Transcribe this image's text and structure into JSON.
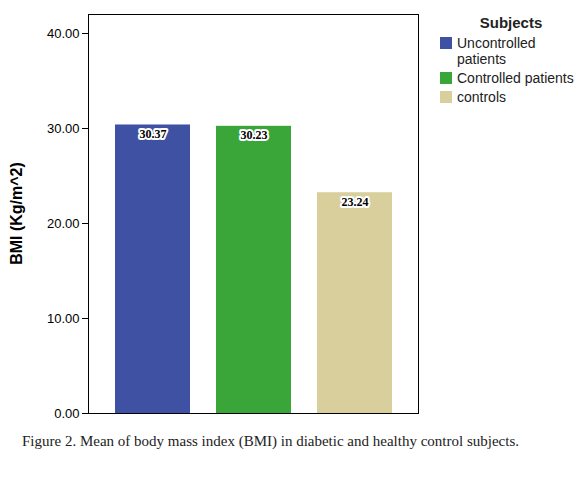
{
  "chart_data": {
    "type": "bar",
    "caption": "Figure 2. Mean of body mass index (BMI) in diabetic and healthy control subjects.",
    "y_label": "BMI (Kg/m^2)",
    "legend_title": "Subjects",
    "legend": "top-right",
    "categories": [
      "Uncontrolled patients",
      "Controlled patients",
      "controls"
    ],
    "values": [
      30.37,
      30.23,
      23.24
    ],
    "colors": [
      "#3f51a3",
      "#3aa63a",
      "#d8cf9c"
    ],
    "ylim": [
      0,
      42
    ],
    "yticks": [
      {
        "value": 0,
        "label": "0.00"
      },
      {
        "value": 10,
        "label": "10.00"
      },
      {
        "value": 20,
        "label": "20.00"
      },
      {
        "value": 30,
        "label": "30.00"
      },
      {
        "value": 40,
        "label": "40.00"
      }
    ],
    "grid": false,
    "data_labels": true,
    "tick_labels": "y"
  }
}
